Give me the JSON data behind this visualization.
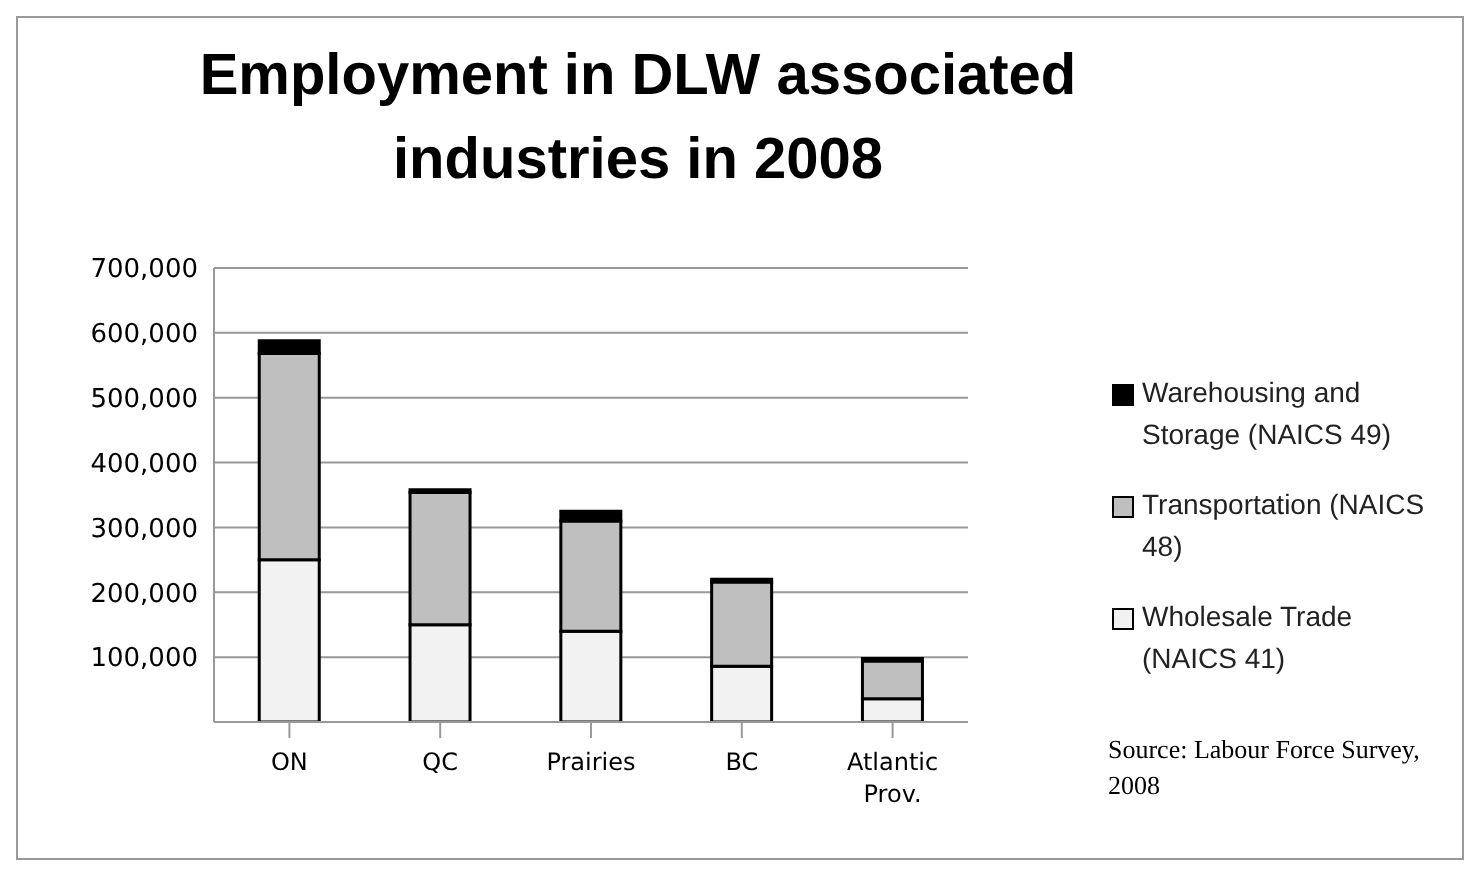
{
  "chart_data": {
    "type": "bar",
    "title": "Employment in DLW associated industries in 2008",
    "categories": [
      "ON",
      "QC",
      "Prairies",
      "BC",
      "Atlantic Prov."
    ],
    "stacked": true,
    "series": [
      {
        "name": "Wholesale Trade (NAICS 41)",
        "color": "#f2f2f2",
        "values": [
          250000,
          150000,
          140000,
          86000,
          36000
        ]
      },
      {
        "name": "Transportation (NAICS 48)",
        "color": "#bfbfbf",
        "values": [
          318000,
          204000,
          170000,
          130000,
          58000
        ]
      },
      {
        "name": "Warehousing and Storage (NAICS 49)",
        "color": "#000000",
        "values": [
          20000,
          4000,
          15000,
          4000,
          4000
        ]
      }
    ],
    "ylim": [
      0,
      700000
    ],
    "yticks": [
      {
        "value": 0,
        "label": null
      },
      {
        "value": 100000,
        "label": "100,000"
      },
      {
        "value": 200000,
        "label": "200,000"
      },
      {
        "value": 300000,
        "label": "300,000"
      },
      {
        "value": 400000,
        "label": "400,000"
      },
      {
        "value": 500000,
        "label": "500,000"
      },
      {
        "value": 600000,
        "label": "600,000"
      },
      {
        "value": 700000,
        "label": "700,000"
      }
    ],
    "grid": "y",
    "legend": "right",
    "annotations": [
      "Source: Labour Force Survey, 2008"
    ]
  }
}
